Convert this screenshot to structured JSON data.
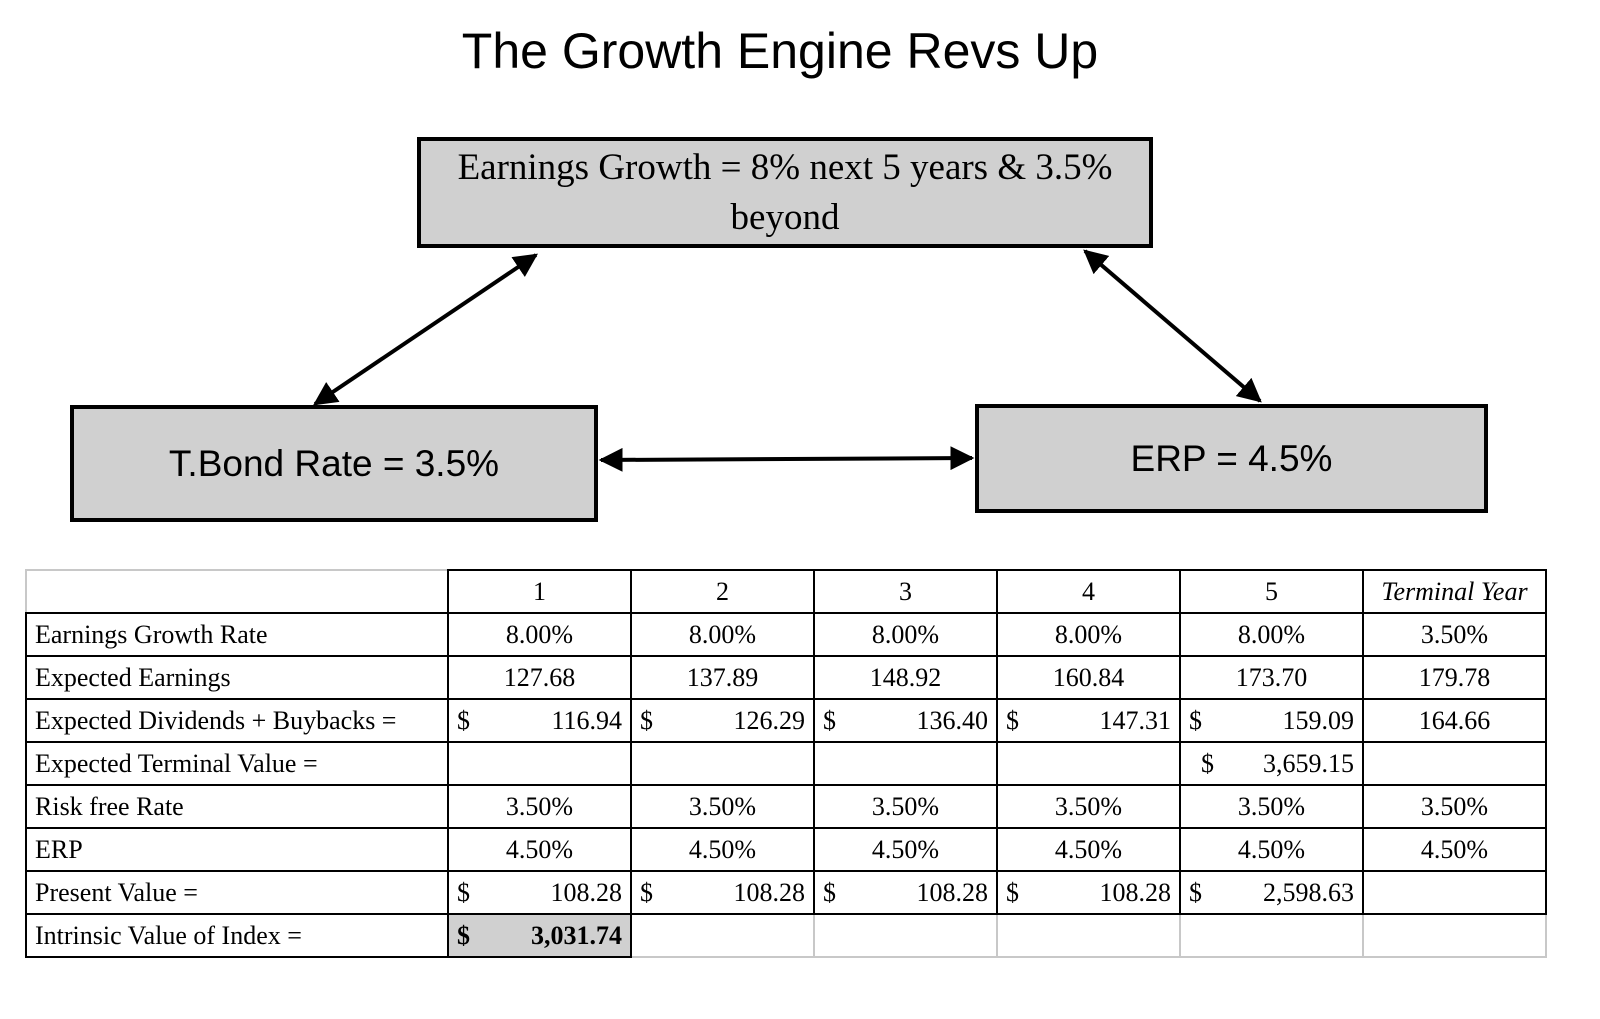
{
  "title": "The Growth Engine Revs Up",
  "boxes": {
    "growth": "Earnings Growth = 8% next 5 years & 3.5% beyond",
    "tbond": "T.Bond Rate = 3.5%",
    "erp": "ERP = 4.5%"
  },
  "table": {
    "headers": [
      "1",
      "2",
      "3",
      "4",
      "5",
      "Terminal Year"
    ],
    "rows": {
      "growth_rate": {
        "label": "Earnings Growth Rate",
        "values": [
          "8.00%",
          "8.00%",
          "8.00%",
          "8.00%",
          "8.00%",
          "3.50%"
        ]
      },
      "earnings": {
        "label": "Expected Earnings",
        "values": [
          "127.68",
          "137.89",
          "148.92",
          "160.84",
          "173.70",
          "179.78"
        ]
      },
      "dividends": {
        "label": "Expected Dividends + Buybacks =",
        "currency": "$",
        "values": [
          "116.94",
          "126.29",
          "136.40",
          "147.31",
          "159.09"
        ],
        "terminal": "164.66"
      },
      "terminal_value": {
        "label": "Expected Terminal Value =",
        "currency": "$",
        "year5": "3,659.15"
      },
      "risk_free": {
        "label": "Risk free Rate",
        "values": [
          "3.50%",
          "3.50%",
          "3.50%",
          "3.50%",
          "3.50%",
          "3.50%"
        ]
      },
      "erp": {
        "label": "ERP",
        "values": [
          "4.50%",
          "4.50%",
          "4.50%",
          "4.50%",
          "4.50%",
          "4.50%"
        ]
      },
      "present_value": {
        "label": "Present Value =",
        "currency": "$",
        "values": [
          "108.28",
          "108.28",
          "108.28",
          "108.28",
          "2,598.63"
        ]
      },
      "intrinsic": {
        "label": "Intrinsic Value of Index =",
        "currency": "$",
        "value": "3,031.74"
      }
    }
  }
}
